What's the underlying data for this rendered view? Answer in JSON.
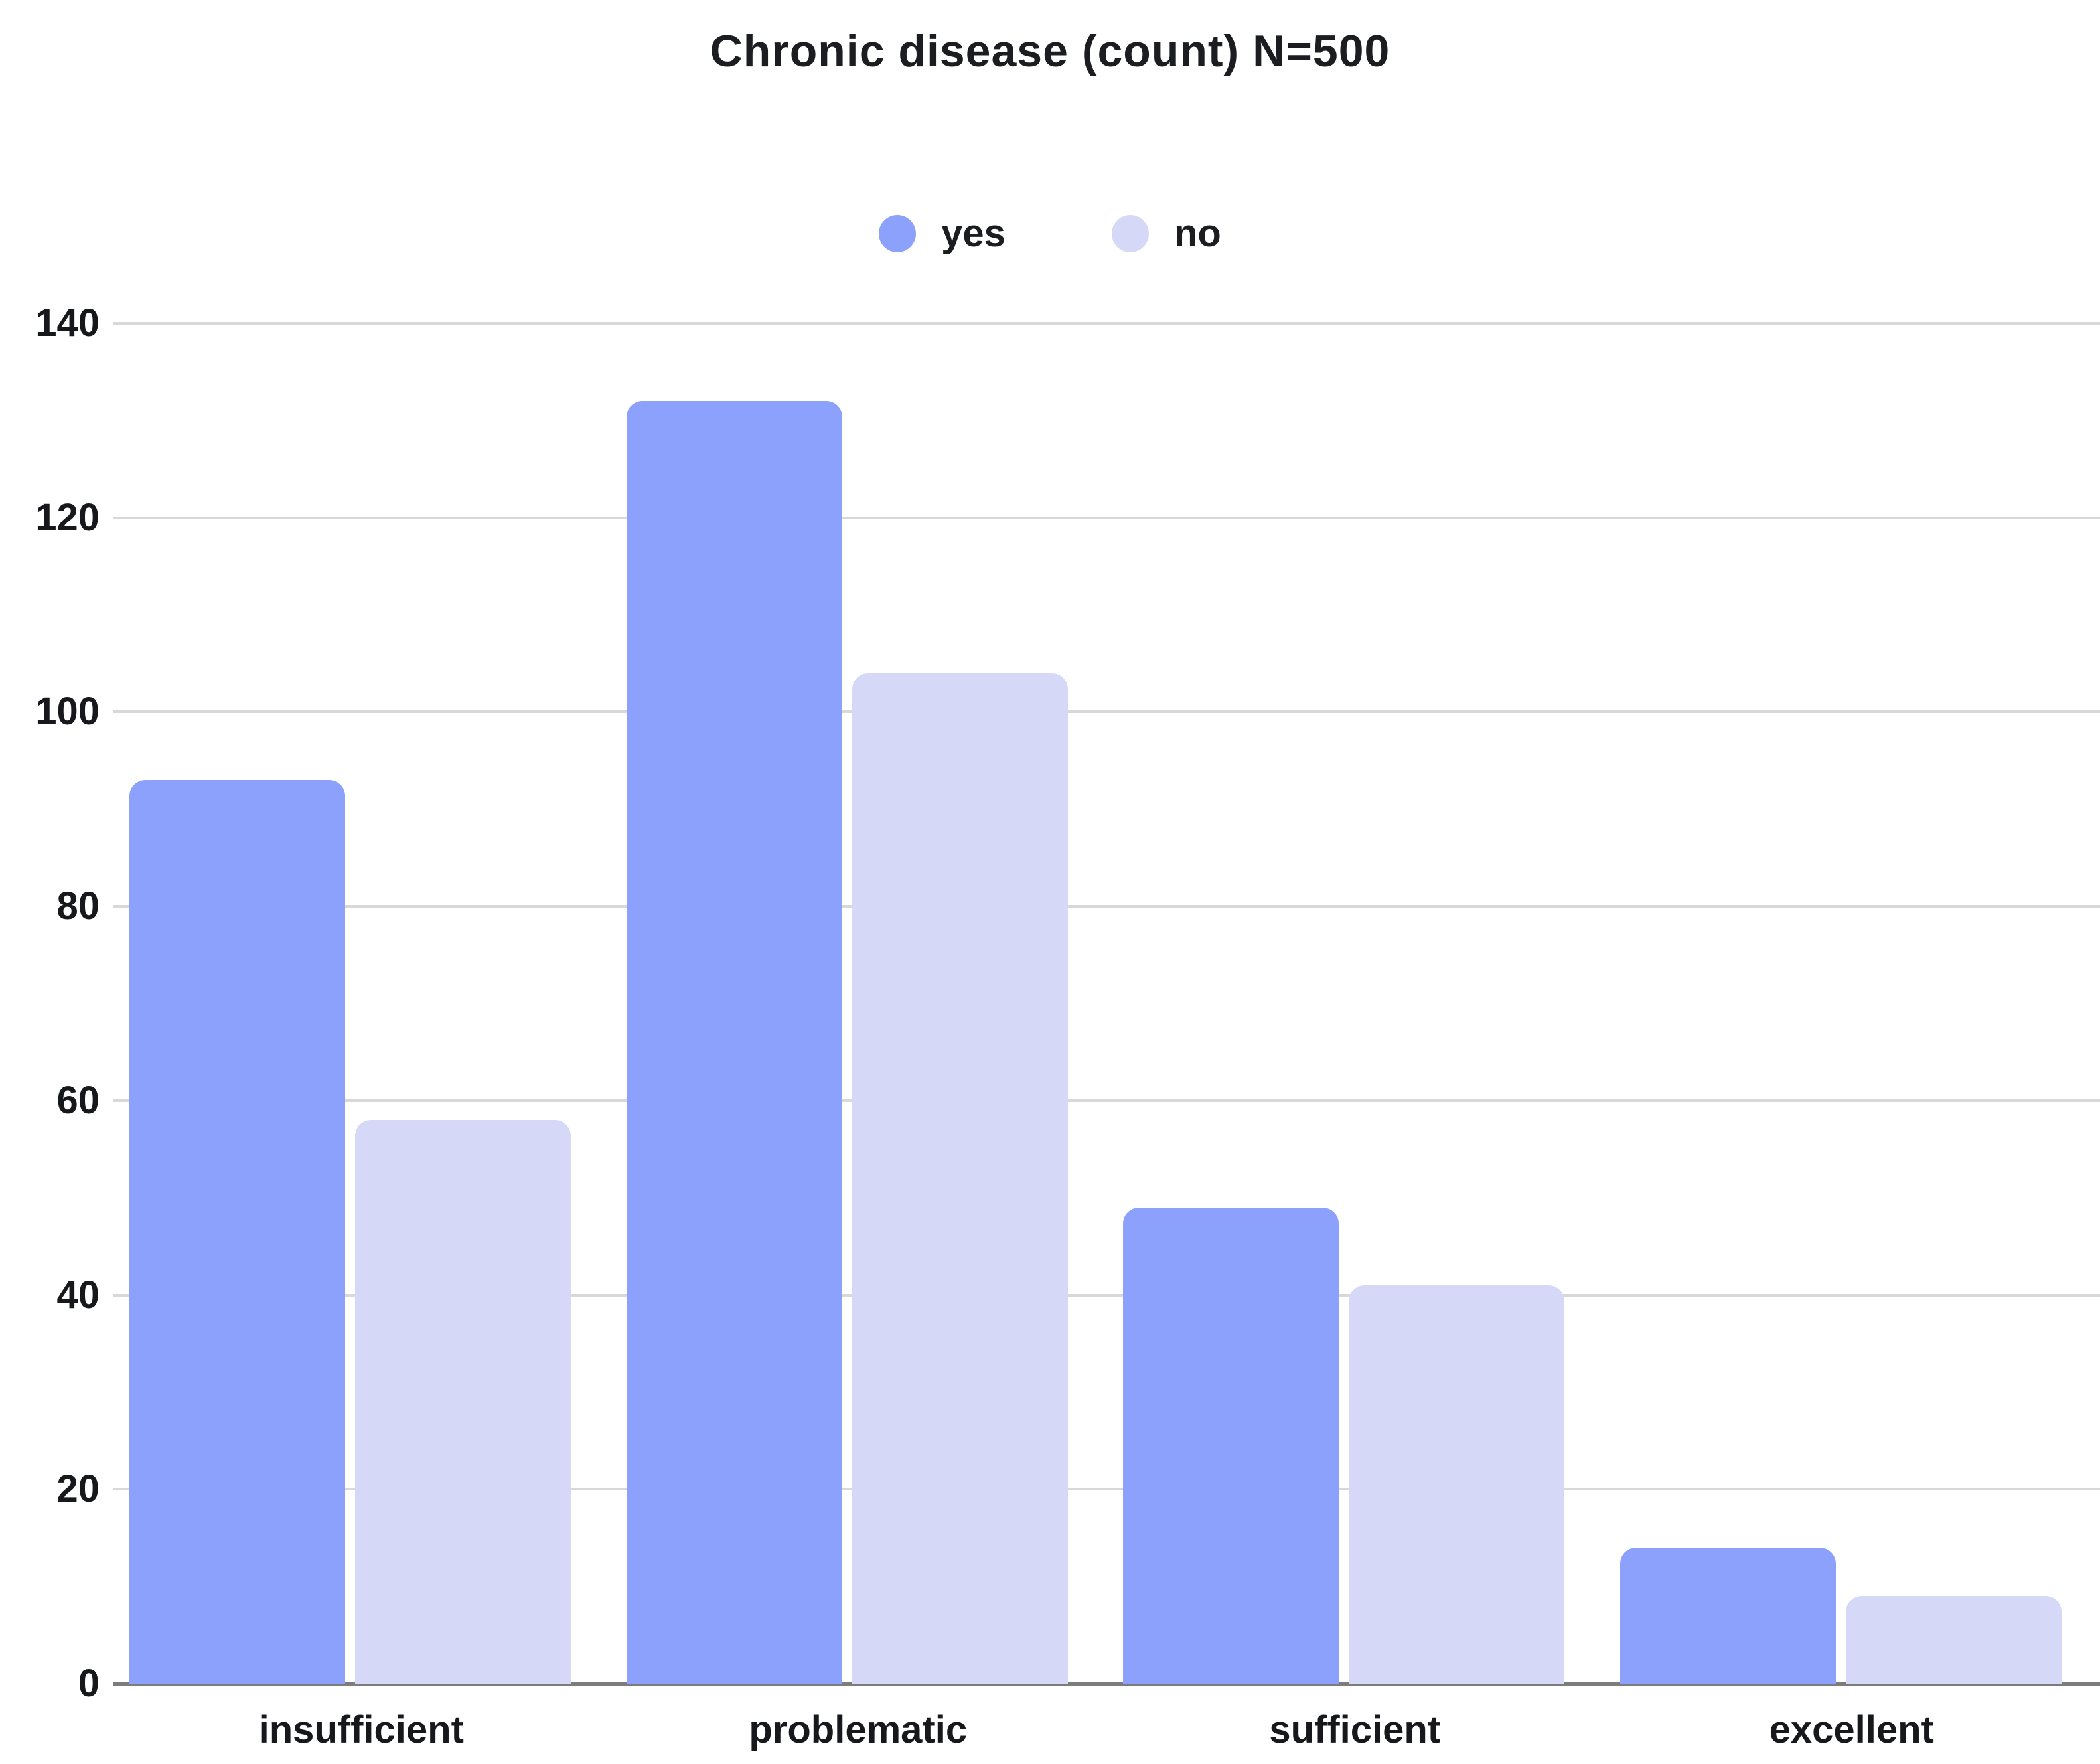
{
  "title": "Chronic disease (count) N=500",
  "legend": {
    "items": [
      {
        "label": "yes",
        "color": "#8BA1FB"
      },
      {
        "label": "no",
        "color": "#D5D9F7"
      }
    ]
  },
  "colors": {
    "yes_bar": "#8BA1FB",
    "no_bar": "#D5D9F7",
    "text": "#1c1d21",
    "gridline": "#d8d8d8",
    "baseline": "#7c7c7c",
    "background": "#ffffff"
  },
  "chart_data": {
    "type": "bar",
    "title": "Chronic disease (count) N=500",
    "categories": [
      "insufficient",
      "problematic",
      "sufficient",
      "excellent"
    ],
    "series": [
      {
        "name": "yes",
        "color": "#8BA1FB",
        "values": [
          93,
          132,
          49,
          14
        ]
      },
      {
        "name": "no",
        "color": "#D5D9F7",
        "values": [
          58,
          104,
          41,
          9
        ]
      }
    ],
    "xlabel": "",
    "ylabel": "",
    "ylim": [
      0,
      140
    ],
    "yticks": [
      0,
      20,
      40,
      60,
      80,
      100,
      120,
      140
    ],
    "grid": true,
    "legend_position": "top-center",
    "total_n": 500
  }
}
